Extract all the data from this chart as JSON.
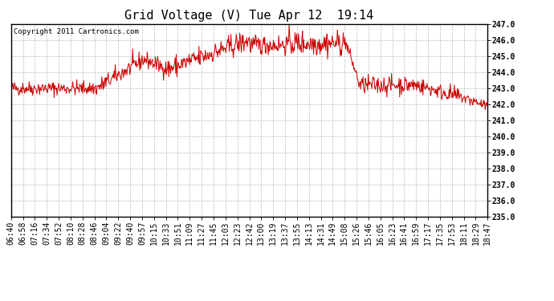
{
  "title": "Grid Voltage (V) Tue Apr 12  19:14",
  "copyright_text": "Copyright 2011 Cartronics.com",
  "line_color": "#cc0000",
  "bg_color": "#ffffff",
  "plot_bg_color": "#ffffff",
  "grid_color": "#bbbbbb",
  "grid_style": "--",
  "ylim": [
    235.0,
    247.0
  ],
  "ytick_step": 1.0,
  "x_labels": [
    "06:40",
    "06:58",
    "07:16",
    "07:34",
    "07:52",
    "08:10",
    "08:28",
    "08:46",
    "09:04",
    "09:22",
    "09:40",
    "09:57",
    "10:15",
    "10:33",
    "10:51",
    "11:09",
    "11:27",
    "11:45",
    "12:03",
    "12:23",
    "12:42",
    "13:00",
    "13:19",
    "13:37",
    "13:55",
    "14:13",
    "14:31",
    "14:49",
    "15:08",
    "15:26",
    "15:46",
    "16:05",
    "16:23",
    "16:41",
    "16:59",
    "17:17",
    "17:35",
    "17:53",
    "18:11",
    "18:29",
    "18:47"
  ],
  "seed": 42,
  "n_points": 820,
  "title_fontsize": 11,
  "tick_fontsize": 7,
  "copyright_fontsize": 6.5
}
